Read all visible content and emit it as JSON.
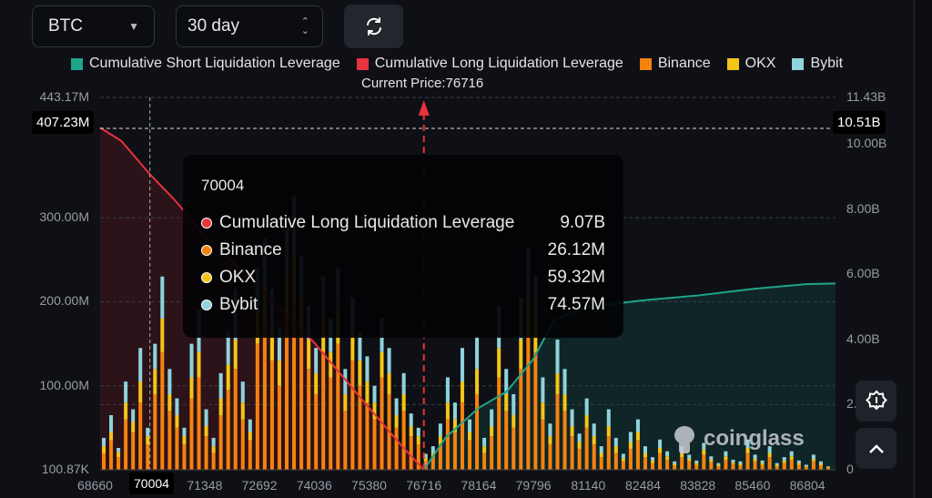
{
  "controls": {
    "coin": "BTC",
    "range": "30 day",
    "refresh_icon": "refresh-icon"
  },
  "legend": [
    {
      "label": "Cumulative Short Liquidation Leverage",
      "color": "#1fa58a"
    },
    {
      "label": "Cumulative Long Liquidation Leverage",
      "color": "#e8323c"
    },
    {
      "label": "Binance",
      "color": "#f5820f"
    },
    {
      "label": "OKX",
      "color": "#f5c518"
    },
    {
      "label": "Bybit",
      "color": "#8fd3dc"
    }
  ],
  "current_price_label": "Current Price:76716",
  "crosshair": {
    "x_label": "70004",
    "left_value": "407.23M",
    "right_value": "10.51B"
  },
  "tooltip": {
    "title": "70004",
    "rows": [
      {
        "label": "Cumulative Long Liquidation Leverage",
        "value": "9.07B",
        "color": "#e8323c"
      },
      {
        "label": "Binance",
        "value": "26.12M",
        "color": "#f5820f"
      },
      {
        "label": "OKX",
        "value": "59.32M",
        "color": "#f5c518"
      },
      {
        "label": "Bybit",
        "value": "74.57M",
        "color": "#8fd3dc"
      }
    ]
  },
  "watermark": "coinglass",
  "chart_data": {
    "type": "bar",
    "title": "",
    "current_price": 76716,
    "x_ticks": [
      "68660",
      "70004",
      "71348",
      "72692",
      "74036",
      "75380",
      "76716",
      "78164",
      "79796",
      "81140",
      "82484",
      "83828",
      "85460",
      "86804"
    ],
    "y_left": {
      "unit": "USD",
      "min_label": "100.87K",
      "max_label": "443.17M",
      "max": 443.17,
      "ticks": [
        "100.87K",
        "100.00M",
        "200.00M",
        "300.00M",
        "443.17M"
      ],
      "tick_values": [
        0.1,
        100,
        200,
        300,
        443.17
      ]
    },
    "y_right": {
      "unit": "USD",
      "max": 11.43,
      "ticks": [
        "0",
        "2.00B",
        "4.00B",
        "6.00B",
        "8.00B",
        "10.00B",
        "11.43B"
      ],
      "tick_values": [
        0,
        2,
        4,
        6,
        8,
        10,
        11.43
      ]
    },
    "series": [
      {
        "name": "Binance",
        "unit": "M",
        "values": [
          20,
          35,
          15,
          60,
          45,
          80,
          30,
          90,
          140,
          70,
          50,
          30,
          85,
          110,
          40,
          20,
          65,
          95,
          120,
          60,
          35,
          150,
          170,
          130,
          100,
          180,
          200,
          160,
          120,
          90,
          140,
          110,
          150,
          70,
          130,
          100,
          80,
          60,
          110,
          90,
          50,
          70,
          40,
          30,
          10,
          15,
          30,
          60,
          45,
          80,
          35,
          90,
          20,
          40,
          110,
          70,
          50,
          120,
          160,
          140,
          60,
          30,
          90,
          70,
          40,
          25,
          50,
          30,
          15,
          40,
          20,
          10,
          25,
          35,
          15,
          8,
          20,
          12,
          5,
          15,
          10,
          6,
          18,
          9,
          4,
          12,
          7,
          5,
          20,
          10,
          6,
          15,
          4,
          8,
          12,
          6,
          3,
          10,
          5,
          2
        ]
      },
      {
        "name": "OKX",
        "unit": "M",
        "values": [
          8,
          10,
          6,
          20,
          12,
          25,
          10,
          30,
          40,
          20,
          15,
          10,
          25,
          30,
          12,
          8,
          20,
          30,
          35,
          20,
          10,
          40,
          45,
          35,
          30,
          50,
          55,
          45,
          35,
          25,
          40,
          30,
          40,
          20,
          35,
          30,
          25,
          20,
          30,
          25,
          15,
          20,
          12,
          10,
          4,
          5,
          10,
          20,
          15,
          25,
          10,
          30,
          8,
          12,
          35,
          20,
          15,
          35,
          45,
          40,
          20,
          10,
          25,
          20,
          12,
          8,
          15,
          10,
          5,
          12,
          8,
          4,
          8,
          10,
          5,
          3,
          6,
          4,
          2,
          5,
          3,
          2,
          6,
          3,
          2,
          4,
          2,
          2,
          6,
          3,
          2,
          5,
          2,
          3,
          4,
          2,
          1,
          3,
          2,
          1
        ]
      },
      {
        "name": "Bybit",
        "unit": "M",
        "values": [
          10,
          20,
          5,
          25,
          15,
          40,
          10,
          30,
          50,
          30,
          20,
          10,
          40,
          50,
          20,
          10,
          30,
          40,
          60,
          25,
          15,
          50,
          60,
          50,
          40,
          60,
          70,
          50,
          40,
          30,
          50,
          40,
          50,
          30,
          40,
          35,
          30,
          20,
          40,
          30,
          20,
          25,
          15,
          10,
          5,
          8,
          15,
          30,
          20,
          40,
          15,
          40,
          10,
          20,
          50,
          30,
          25,
          50,
          60,
          50,
          30,
          15,
          40,
          30,
          20,
          10,
          20,
          15,
          8,
          20,
          10,
          5,
          12,
          15,
          8,
          4,
          10,
          6,
          3,
          8,
          5,
          3,
          8,
          4,
          2,
          6,
          3,
          3,
          10,
          5,
          3,
          8,
          2,
          4,
          6,
          3,
          2,
          5,
          3,
          1
        ]
      }
    ],
    "lines": [
      {
        "name": "Cumulative Long Liquidation Leverage",
        "unit": "B",
        "points": [
          [
            68660,
            10.5
          ],
          [
            69300,
            10.1
          ],
          [
            70004,
            9.07
          ],
          [
            70600,
            8.3
          ],
          [
            71348,
            7.2
          ],
          [
            72692,
            5.6
          ],
          [
            74036,
            3.9
          ],
          [
            75380,
            1.9
          ],
          [
            76200,
            0.7
          ],
          [
            76716,
            0
          ]
        ]
      },
      {
        "name": "Cumulative Short Liquidation Leverage",
        "unit": "B",
        "points": [
          [
            76716,
            0
          ],
          [
            77300,
            1.0
          ],
          [
            78164,
            1.9
          ],
          [
            79000,
            2.4
          ],
          [
            79796,
            3.4
          ],
          [
            80300,
            4.6
          ],
          [
            81140,
            5.0
          ],
          [
            82484,
            5.2
          ],
          [
            83828,
            5.35
          ],
          [
            85460,
            5.55
          ],
          [
            86804,
            5.7
          ],
          [
            87500,
            5.72
          ]
        ]
      }
    ]
  }
}
